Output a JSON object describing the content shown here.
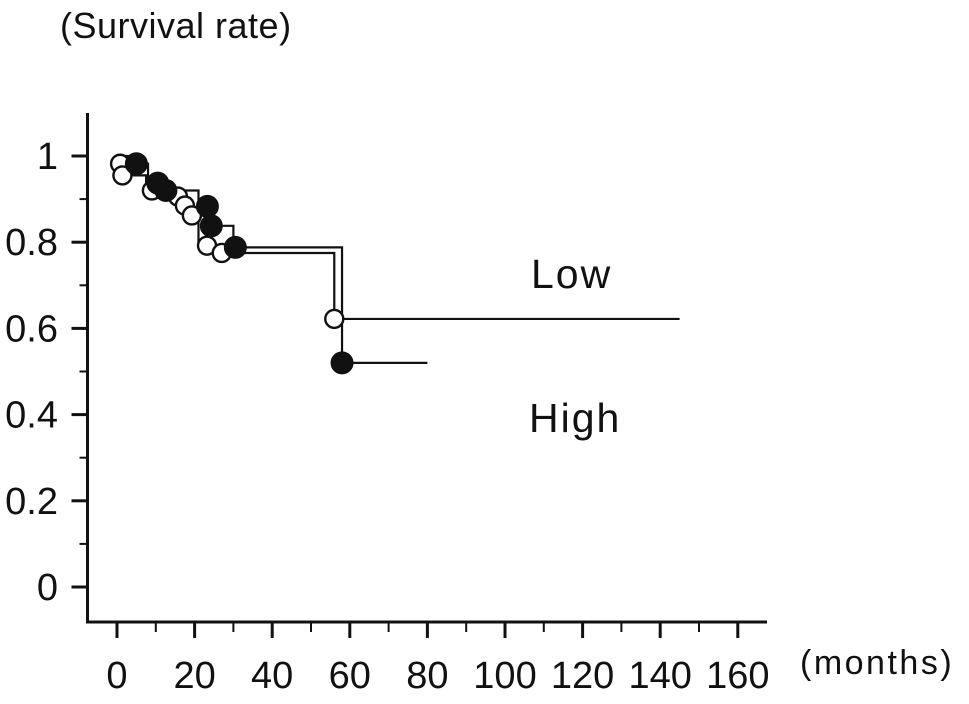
{
  "colors": {
    "ink": "#111111",
    "background": "#ffffff"
  },
  "chart_data": {
    "type": "line",
    "subtype": "kaplan-meier-step-curves",
    "title": "(Survival rate)",
    "xlabel": "(months)",
    "ylabel": "Survival rate",
    "xlim": [
      0,
      168
    ],
    "ylim": [
      0,
      1
    ],
    "grid": false,
    "legend_position": "inline-text-annotations",
    "x_ticks_major": {
      "values": [
        0,
        20,
        40,
        60,
        80,
        100,
        120,
        140,
        160
      ],
      "labels": [
        "0",
        "20",
        "40",
        "60",
        "80",
        "100",
        "120",
        "140",
        "160"
      ]
    },
    "x_ticks_minor": [
      10,
      30,
      50,
      70,
      90,
      110,
      130,
      150
    ],
    "y_ticks_major": {
      "values": [
        0,
        0.2,
        0.4,
        0.6,
        0.8,
        1
      ],
      "labels": [
        "0",
        "0.2",
        "0.4",
        "0.6",
        "0.8",
        "1"
      ]
    },
    "y_ticks_minor": [
      0.1,
      0.3,
      0.5,
      0.7,
      0.9
    ],
    "series": [
      {
        "name": "Low",
        "marker": "open-circle",
        "steps": [
          [
            0,
            1.0
          ],
          [
            0.5,
            0.982
          ],
          [
            1.2,
            0.955
          ],
          [
            7.5,
            0.92
          ],
          [
            13.5,
            0.906
          ],
          [
            16.5,
            0.885
          ],
          [
            18.5,
            0.862
          ],
          [
            21,
            0.792
          ],
          [
            25.5,
            0.775
          ],
          [
            56,
            0.622
          ]
        ],
        "end_x": 145,
        "final_value": 0.622,
        "censor_marks": [
          [
            0.8,
            0.982
          ],
          [
            1.4,
            0.955
          ],
          [
            9,
            0.92
          ],
          [
            15.7,
            0.906
          ],
          [
            17.5,
            0.885
          ],
          [
            19.3,
            0.862
          ],
          [
            23.2,
            0.792
          ],
          [
            27,
            0.775
          ],
          [
            56,
            0.622
          ]
        ]
      },
      {
        "name": "High",
        "marker": "filled-circle",
        "steps": [
          [
            0,
            1.0
          ],
          [
            3,
            0.982
          ],
          [
            8,
            0.937
          ],
          [
            11.8,
            0.92
          ],
          [
            21,
            0.883
          ],
          [
            23.8,
            0.838
          ],
          [
            30,
            0.788
          ],
          [
            58,
            0.52
          ]
        ],
        "end_x": 80,
        "final_value": 0.52,
        "censor_marks": [
          [
            5,
            0.982
          ],
          [
            10.5,
            0.937
          ],
          [
            12.6,
            0.92
          ],
          [
            23.3,
            0.883
          ],
          [
            24.3,
            0.838
          ],
          [
            30.5,
            0.788
          ],
          [
            58,
            0.52
          ]
        ]
      }
    ],
    "annotations": [
      {
        "text": "Low",
        "x_months": 118,
        "y_value": 0.72
      },
      {
        "text": "High",
        "x_months": 118,
        "y_value": 0.39
      }
    ]
  }
}
